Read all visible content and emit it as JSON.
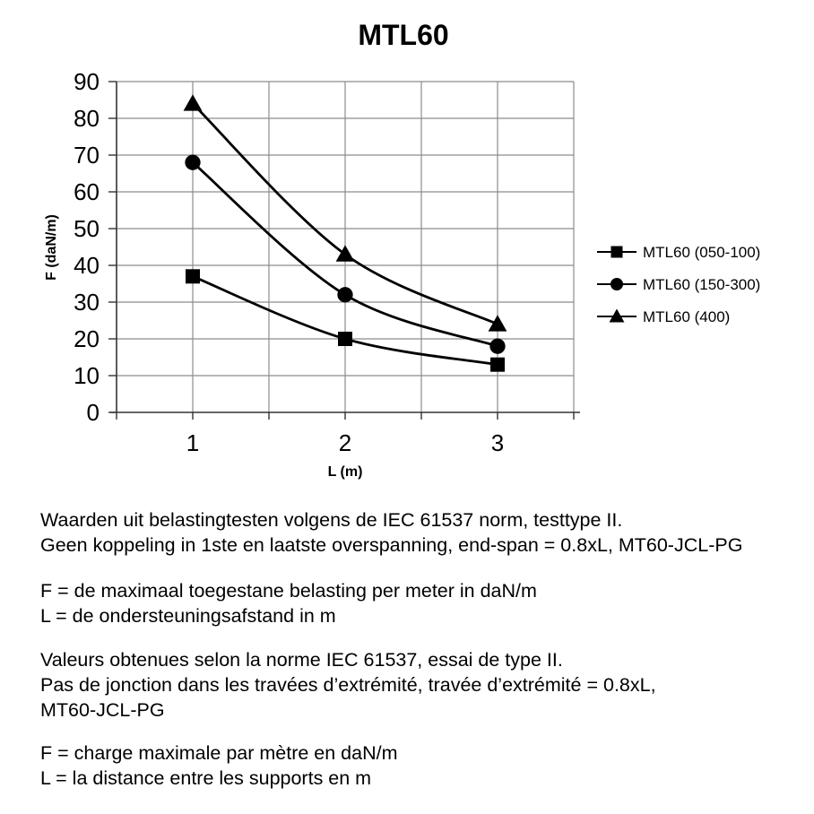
{
  "chart_data": {
    "type": "line",
    "title": "MTL60",
    "xlabel": "L (m)",
    "ylabel": "F (daN/m)",
    "x": [
      1,
      2,
      3
    ],
    "series": [
      {
        "name": "MTL60 (050-100)",
        "marker": "square",
        "values": [
          37,
          20,
          13
        ]
      },
      {
        "name": "MTL60 (150-300)",
        "marker": "circle",
        "values": [
          68,
          32,
          18
        ]
      },
      {
        "name": "MTL60 (400)",
        "marker": "triangle",
        "values": [
          84,
          43,
          24
        ]
      }
    ],
    "x_axis": {
      "min": 0.5,
      "max": 3.5,
      "grid_step": 0.5,
      "tick_labels": [
        1,
        2,
        3
      ]
    },
    "y_axis": {
      "min": 0,
      "max": 90,
      "step": 10
    },
    "grid": true,
    "legend_position": "right",
    "line_color": "#000000",
    "grid_color": "#8c8c8c",
    "axis_color": "#333333"
  },
  "notes": [
    [
      "Waarden uit belastingtesten volgens de IEC 61537 norm, testtype II.",
      "Geen koppeling in 1ste en laatste overspanning, end-span = 0.8xL, MT60-JCL-PG"
    ],
    [
      "F = de maximaal toegestane belasting per meter in daN/m",
      "L = de ondersteuningsafstand in m"
    ],
    [
      "Valeurs obtenues selon la norme IEC 61537, essai de type II.",
      "Pas de jonction dans les travées d’extrémité, travée d’extrémité = 0.8xL,",
      "MT60-JCL-PG"
    ],
    [
      "F = charge maximale par mètre en daN/m",
      "L = la distance entre les supports en m"
    ]
  ]
}
